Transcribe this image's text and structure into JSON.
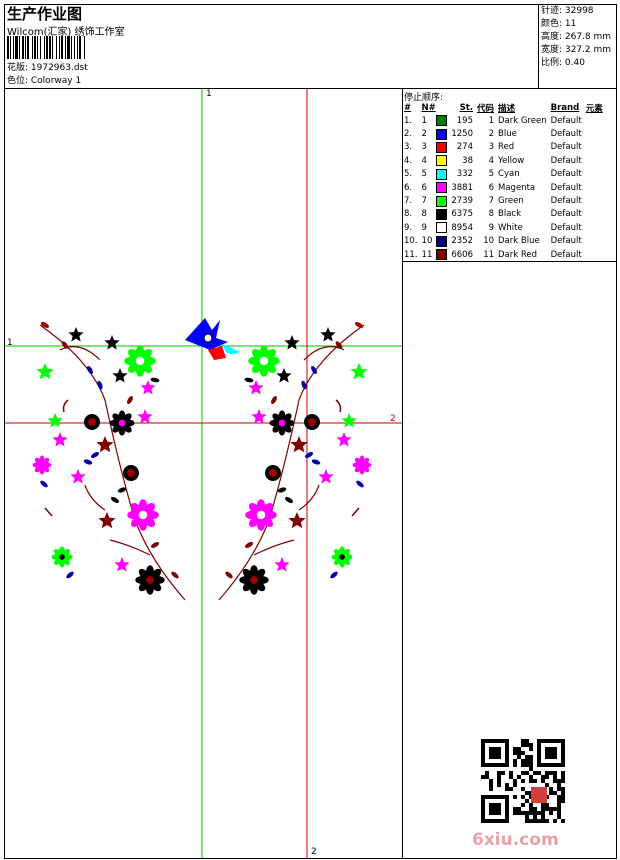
{
  "header": {
    "title": "生产作业图",
    "subtitle": "Wilcom(汇家) 绣饰工作室",
    "pattern_label": "花版: 1972963.dst",
    "colorway_label": "色位: Colorway 1"
  },
  "stats": {
    "stitches": "针迹: 32998",
    "colors": "颜色: 11",
    "height": "高度: 267.8 mm",
    "width": "宽度: 327.2 mm",
    "scale": "比例: 0.40"
  },
  "stop_sequence": {
    "title": "停止顺序:",
    "columns": [
      "#",
      "N#",
      "St.",
      "代码",
      "描述",
      "Brand",
      "元素"
    ],
    "rows": [
      {
        "idx": "1.",
        "n": "1",
        "st": "195",
        "code": "1",
        "desc": "Dark Green",
        "brand": "Default",
        "color": "#008000"
      },
      {
        "idx": "2.",
        "n": "2",
        "st": "1250",
        "code": "2",
        "desc": "Blue",
        "brand": "Default",
        "color": "#0000ff"
      },
      {
        "idx": "3.",
        "n": "3",
        "st": "274",
        "code": "3",
        "desc": "Red",
        "brand": "Default",
        "color": "#ff0000"
      },
      {
        "idx": "4.",
        "n": "4",
        "st": "38",
        "code": "4",
        "desc": "Yellow",
        "brand": "Default",
        "color": "#ffff00"
      },
      {
        "idx": "5.",
        "n": "5",
        "st": "332",
        "code": "5",
        "desc": "Cyan",
        "brand": "Default",
        "color": "#00ffff"
      },
      {
        "idx": "6.",
        "n": "6",
        "st": "3881",
        "code": "6",
        "desc": "Magenta",
        "brand": "Default",
        "color": "#ff00ff"
      },
      {
        "idx": "7.",
        "n": "7",
        "st": "2739",
        "code": "7",
        "desc": "Green",
        "brand": "Default",
        "color": "#00ff00"
      },
      {
        "idx": "8.",
        "n": "8",
        "st": "6375",
        "code": "8",
        "desc": "Black",
        "brand": "Default",
        "color": "#000000"
      },
      {
        "idx": "9.",
        "n": "9",
        "st": "8954",
        "code": "9",
        "desc": "White",
        "brand": "Default",
        "color": "#ffffff"
      },
      {
        "idx": "10.",
        "n": "10",
        "st": "2352",
        "code": "10",
        "desc": "Dark Blue",
        "brand": "Default",
        "color": "#000080"
      },
      {
        "idx": "11.",
        "n": "11",
        "st": "6606",
        "code": "11",
        "desc": "Dark Red",
        "brand": "Default",
        "color": "#800000"
      }
    ]
  },
  "guides": {
    "v1": "1",
    "h1": "1",
    "h2": "2",
    "v2": "2"
  },
  "watermark": {
    "text": "6xiu.com"
  },
  "colors": {
    "guide_green": "#00c000",
    "guide_red": "#c00000"
  }
}
